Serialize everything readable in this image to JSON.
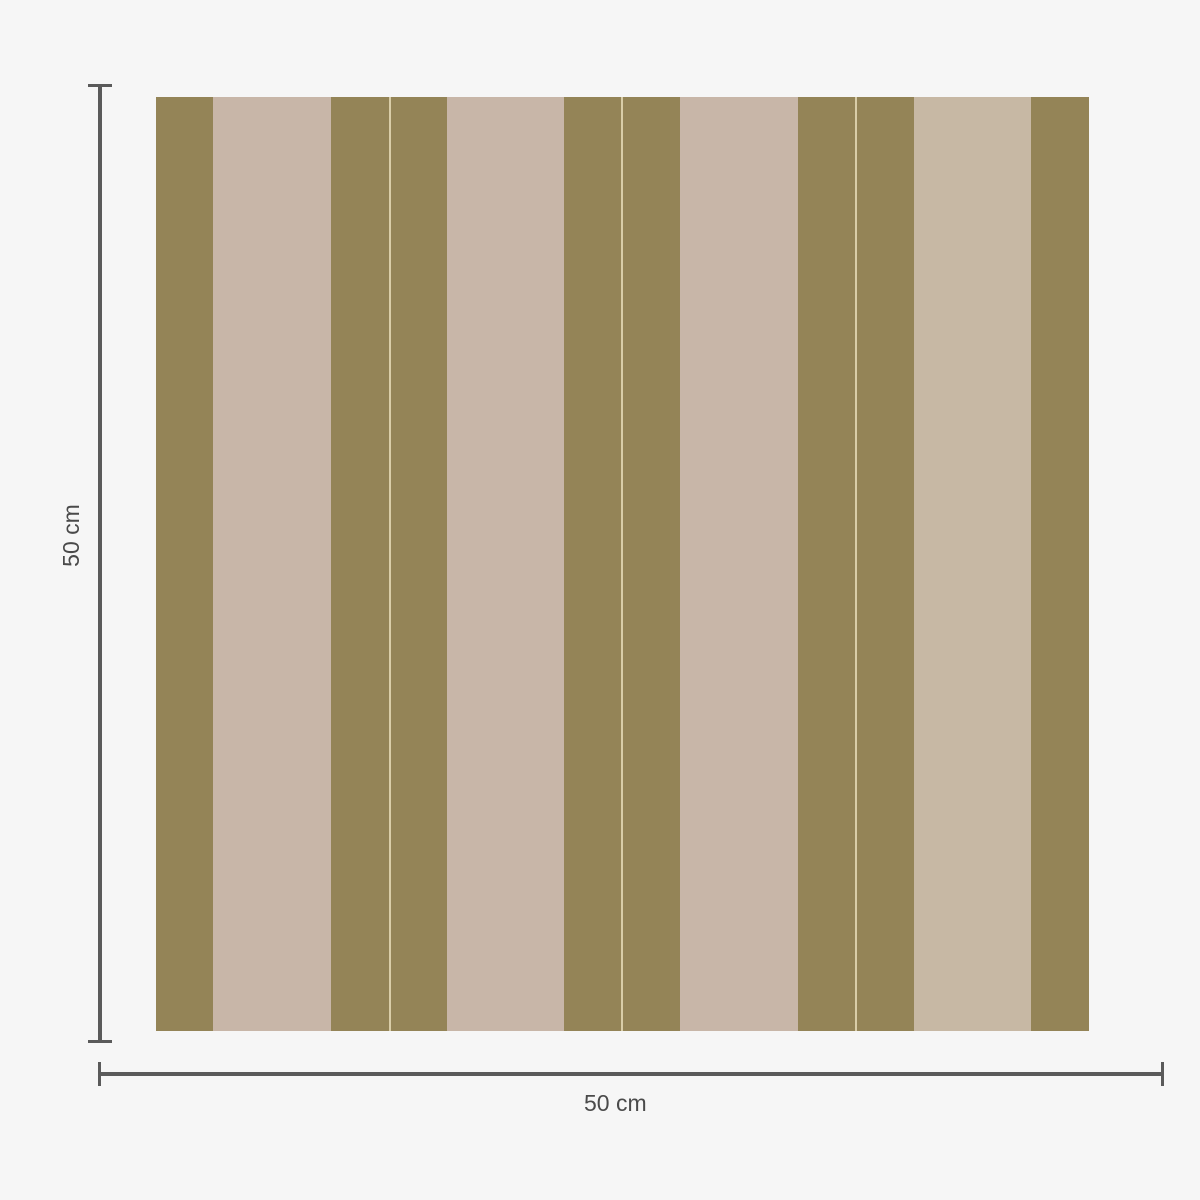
{
  "product": {
    "height_label": "50 cm",
    "width_label": "50 cm",
    "colors": {
      "olive": "#948457",
      "pink": "#c8b6a8",
      "beige": "#c7b8a4",
      "background": "#f6f6f6",
      "dimension_line": "#5a5a5a"
    }
  }
}
